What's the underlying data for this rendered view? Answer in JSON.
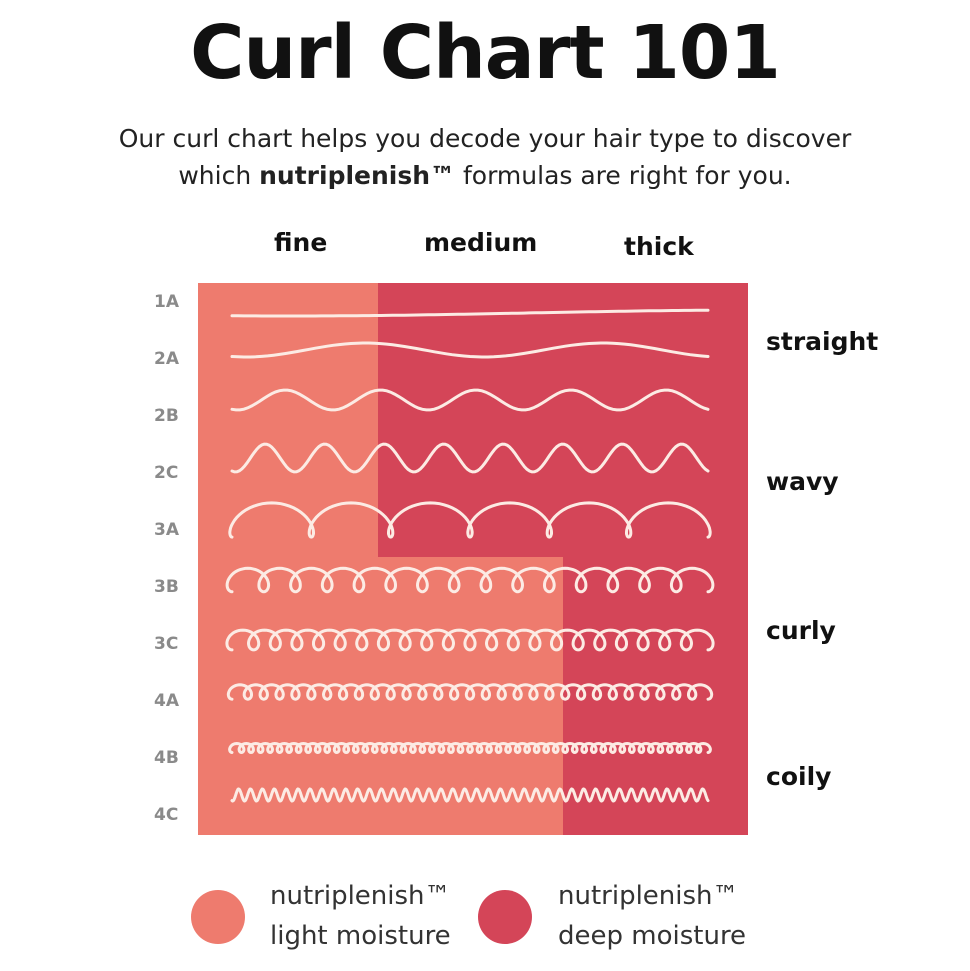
{
  "title": "Curl Chart 101",
  "subtitle": {
    "line1": "Our curl chart helps you decode your hair type to discover",
    "pre": "which ",
    "brand": "nutriplenish™",
    "post": " formulas are right for you."
  },
  "columns": [
    "fine",
    "medium",
    "thick"
  ],
  "rows": [
    "1A",
    "2A",
    "2B",
    "2C",
    "3A",
    "3B",
    "3C",
    "4A",
    "4B",
    "4C"
  ],
  "categories": [
    "straight",
    "wavy",
    "curly",
    "coily"
  ],
  "colors": {
    "light_moisture": "#EE7B6E",
    "deep_moisture": "#D44558",
    "curve": "#FCEBE4"
  },
  "legend": [
    {
      "line1": "nutriplenish™",
      "line2": "light moisture",
      "color": "#EE7B6E"
    },
    {
      "line1": "nutriplenish™",
      "line2": "deep moisture",
      "color": "#D44558"
    }
  ]
}
